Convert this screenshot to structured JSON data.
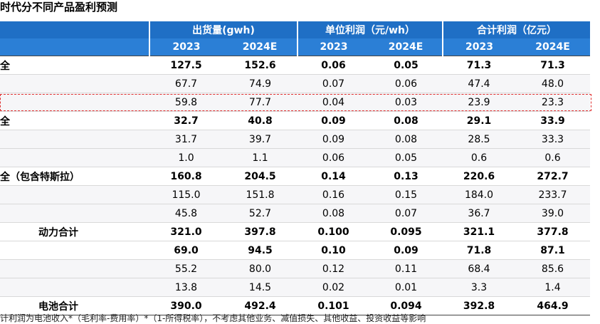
{
  "title": "时代分不同产品盈利预测",
  "table": {
    "groups": [
      "出货量(gwh)",
      "单位利润（元/wh）",
      "合计利润（亿元）"
    ],
    "years": [
      "2023",
      "2024E",
      "2023",
      "2024E",
      "2023",
      "2024E"
    ],
    "rows": [
      {
        "label": "全",
        "bold": true,
        "cells": [
          "127.5",
          "152.6",
          "0.06",
          "0.05",
          "71.3",
          "71.3"
        ]
      },
      {
        "label": null,
        "bold": false,
        "cells": [
          "67.7",
          "74.9",
          "0.07",
          "0.06",
          "47.4",
          "48.0"
        ]
      },
      {
        "label": null,
        "bold": false,
        "highlighted": true,
        "cells": [
          "59.8",
          "77.7",
          "0.04",
          "0.03",
          "23.9",
          "23.3"
        ]
      },
      {
        "label": "全",
        "bold": true,
        "cells": [
          "32.7",
          "40.8",
          "0.09",
          "0.08",
          "29.1",
          "33.9"
        ]
      },
      {
        "label": null,
        "bold": false,
        "cells": [
          "31.7",
          "39.7",
          "0.09",
          "0.08",
          "28.5",
          "33.3"
        ]
      },
      {
        "label": null,
        "bold": false,
        "cells": [
          "1.0",
          "1.1",
          "0.06",
          "0.05",
          "0.6",
          "0.6"
        ]
      },
      {
        "label": "全（包含特斯拉）",
        "bold": true,
        "cells": [
          "160.8",
          "204.5",
          "0.14",
          "0.13",
          "220.6",
          "272.7"
        ]
      },
      {
        "label": null,
        "bold": false,
        "cells": [
          "115.0",
          "151.8",
          "0.16",
          "0.15",
          "184.0",
          "233.7"
        ]
      },
      {
        "label": null,
        "bold": false,
        "cells": [
          "45.8",
          "52.7",
          "0.08",
          "0.07",
          "36.7",
          "39.0"
        ]
      },
      {
        "label": "动力合计",
        "bold": true,
        "centered": true,
        "cells": [
          "321.0",
          "397.8",
          "0.100",
          "0.095",
          "321.1",
          "377.8"
        ]
      },
      {
        "label": null,
        "bold": true,
        "cells": [
          "69.0",
          "94.5",
          "0.10",
          "0.09",
          "71.8",
          "87.1"
        ]
      },
      {
        "label": null,
        "bold": false,
        "cells": [
          "55.2",
          "80.0",
          "0.12",
          "0.11",
          "68.4",
          "85.6"
        ]
      },
      {
        "label": null,
        "bold": false,
        "cells": [
          "13.8",
          "14.5",
          "0.02",
          "0.01",
          "3.3",
          "1.4"
        ]
      },
      {
        "label": "电池合计",
        "bold": true,
        "centered": true,
        "cells": [
          "390.0",
          "492.4",
          "0.101",
          "0.094",
          "392.8",
          "464.9"
        ]
      }
    ]
  },
  "footnote": "计利润为电池收入*（毛利率-费用率）*（1-所得税率），不考虑其他业务、减值损失、其他收益、投资收益等影响"
}
